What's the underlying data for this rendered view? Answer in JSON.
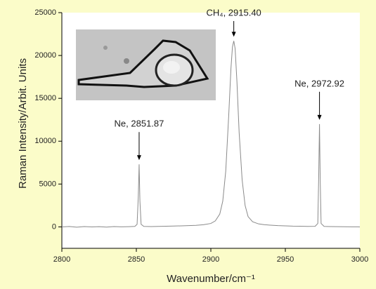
{
  "chart_data": {
    "type": "line",
    "xlabel": "Wavenumber/cm⁻¹",
    "ylabel": "Raman Intensity/Arbit. Units",
    "x": [
      2800,
      2805,
      2810,
      2815,
      2820,
      2825,
      2830,
      2835,
      2840,
      2845,
      2849,
      2850.5,
      2851.3,
      2851.87,
      2852.4,
      2853.2,
      2855,
      2860,
      2865,
      2870,
      2875,
      2880,
      2885,
      2890,
      2895,
      2900,
      2903,
      2906,
      2908,
      2910,
      2912,
      2913.5,
      2914.5,
      2915.4,
      2916.3,
      2917.5,
      2919,
      2921,
      2923,
      2925,
      2928,
      2932,
      2936,
      2940,
      2945,
      2950,
      2955,
      2960,
      2965,
      2970,
      2971.8,
      2972.4,
      2972.92,
      2973.4,
      2974,
      2976,
      2980,
      2985,
      2990,
      2995,
      3000
    ],
    "series": [
      {
        "color": "#8a8a8a",
        "values": [
          0,
          50,
          -30,
          40,
          0,
          30,
          -20,
          40,
          10,
          30,
          60,
          300,
          3500,
          7300,
          3000,
          300,
          60,
          40,
          60,
          80,
          100,
          120,
          150,
          180,
          250,
          400,
          700,
          1500,
          3000,
          6500,
          13000,
          18500,
          21000,
          21700,
          20800,
          17000,
          11000,
          5500,
          2500,
          1200,
          600,
          350,
          250,
          200,
          150,
          120,
          90,
          80,
          60,
          70,
          400,
          6000,
          12000,
          5500,
          400,
          60,
          40,
          30,
          20,
          10,
          0
        ]
      }
    ],
    "xlim": [
      2800,
      3000
    ],
    "xticks": [
      2800,
      2850,
      2900,
      2950,
      3000
    ],
    "ylim": [
      -2500,
      25000
    ],
    "yticks": [
      0,
      5000,
      10000,
      15000,
      20000,
      25000
    ],
    "annotations": [
      {
        "text": "Ne, 2851.87",
        "x": 2851.87
      },
      {
        "text": "CH₄, 2915.40",
        "x": 2915.4
      },
      {
        "text": "Ne, 2972.92",
        "x": 2972.92
      }
    ]
  }
}
